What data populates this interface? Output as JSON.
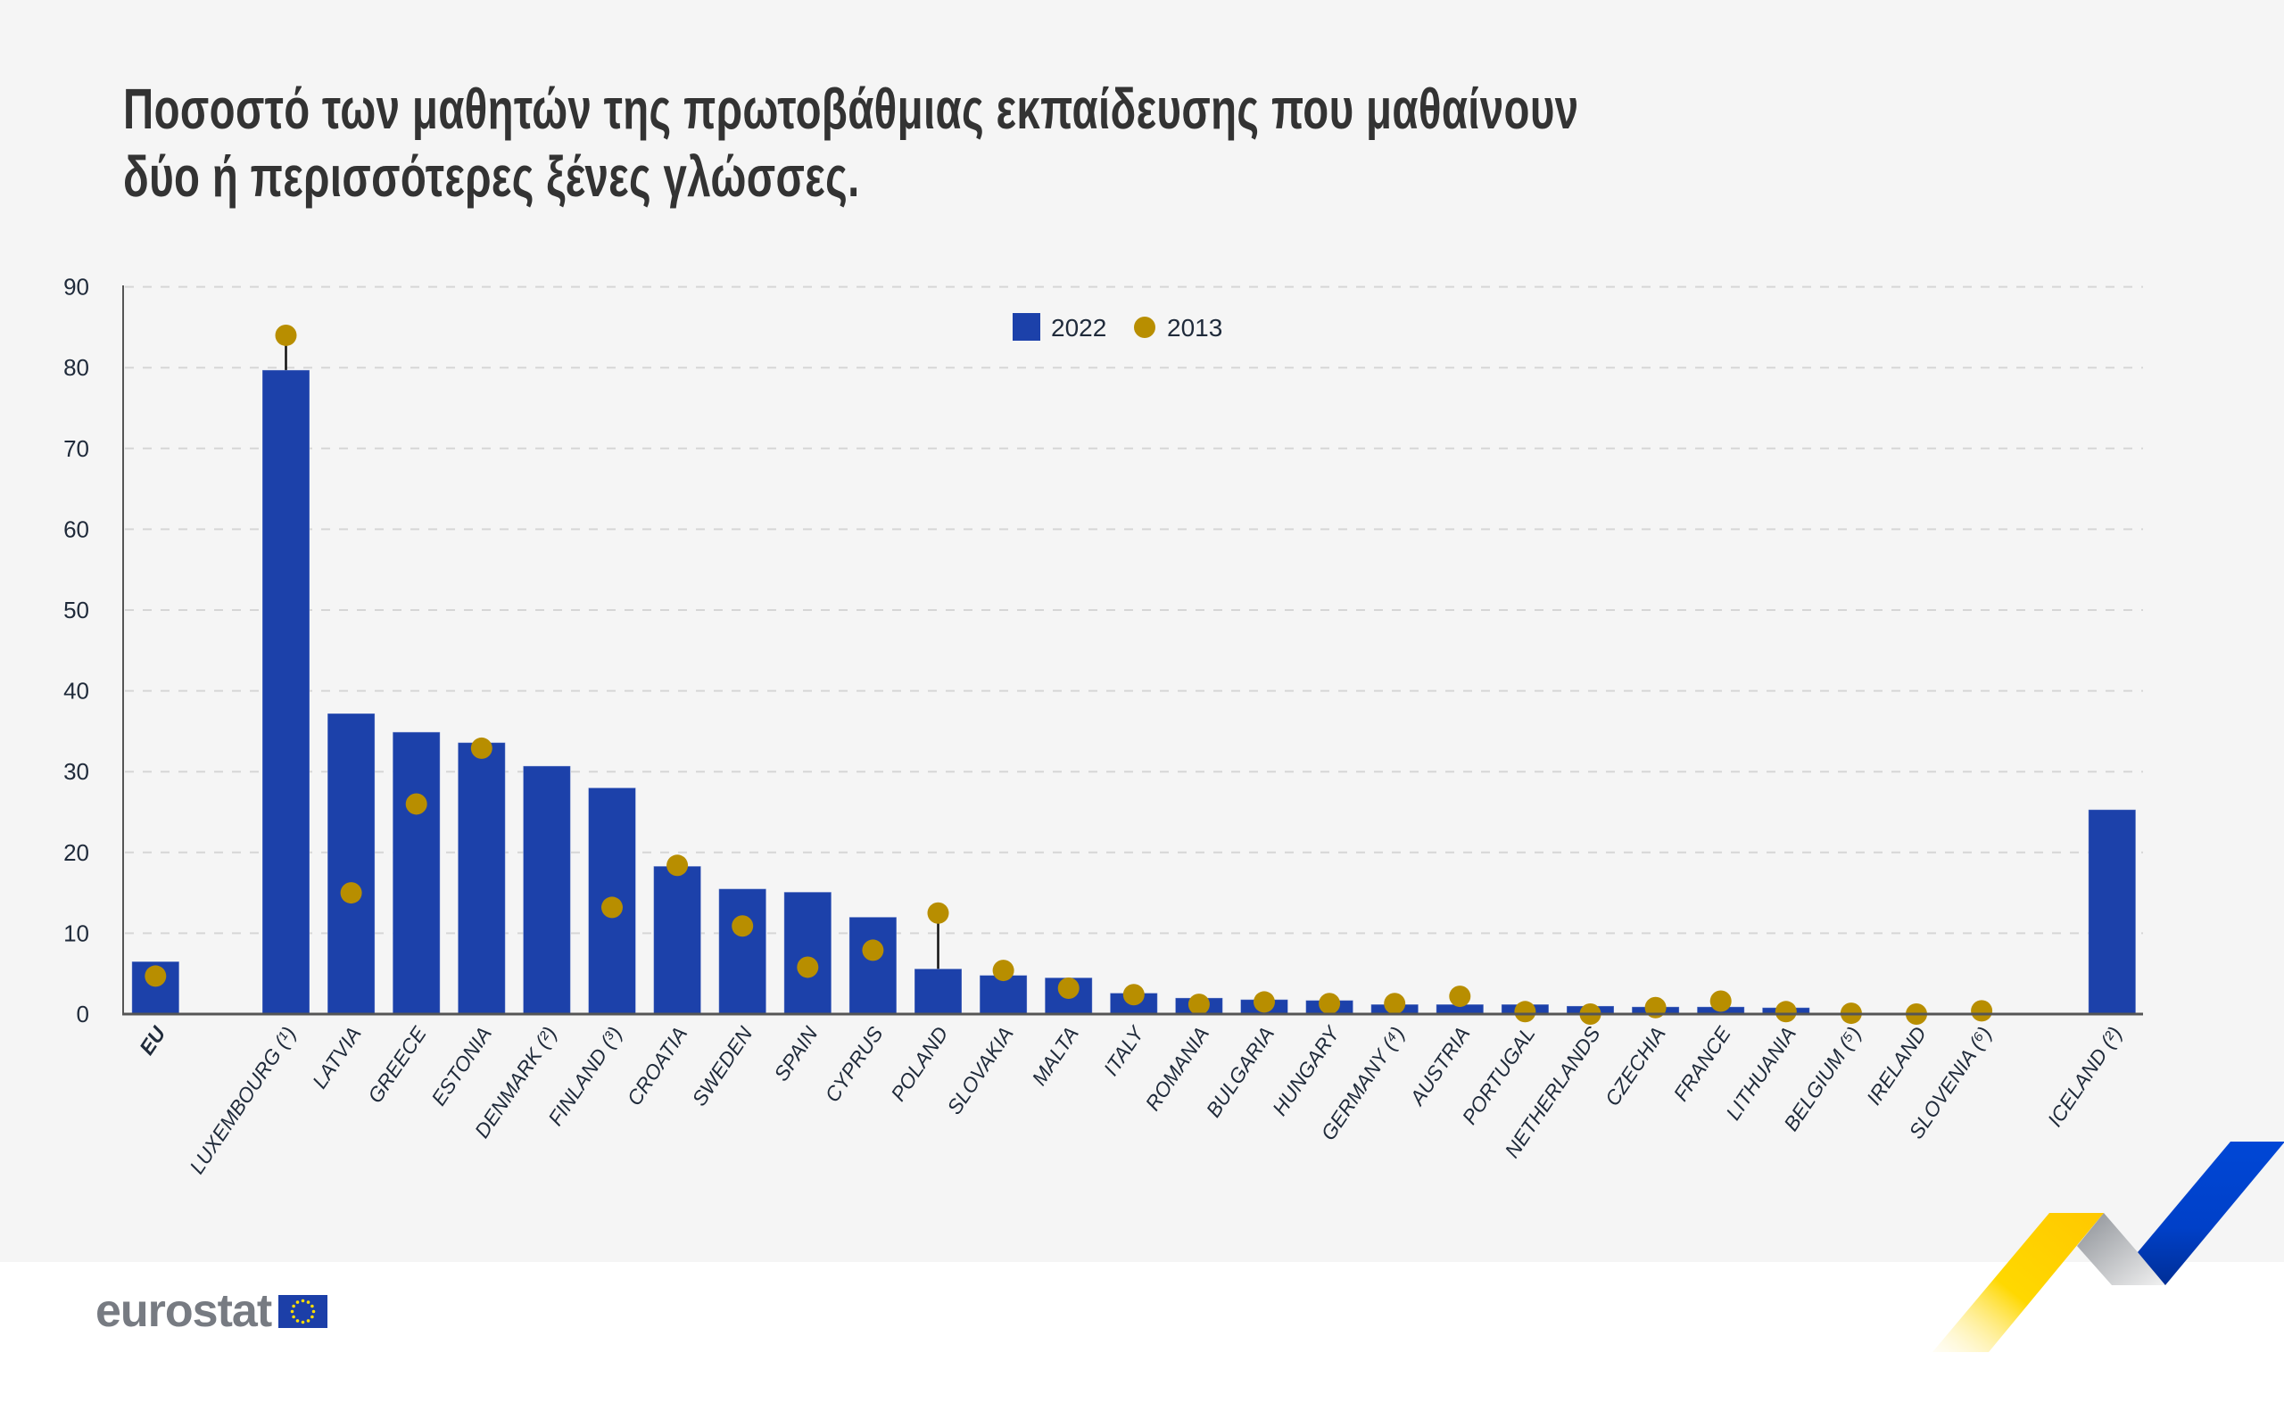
{
  "title": {
    "line1": "Ποσοστό των μαθητών της πρωτοβάθμιας εκπαίδευσης που μαθαίνουν",
    "line2": "δύο ή περισσότερες ξένες γλώσσες."
  },
  "colors": {
    "bar_2022": "#1c41aa",
    "dot_2013": "#b88e00",
    "background": "#f5f5f5",
    "text": "#1f2a3a"
  },
  "legend": [
    {
      "label": "2022",
      "marker": "square",
      "color": "#1c41aa"
    },
    {
      "label": "2013",
      "marker": "circle",
      "color": "#b88e00"
    }
  ],
  "footer": {
    "logo_text": "eurostat",
    "flag_icon": "eu-flag-icon"
  },
  "chart_data": {
    "type": "bar",
    "title": "Ποσοστό των μαθητών της πρωτοβάθμιας εκπαίδευσης που μαθαίνουν δύο ή περισσότερες ξένες γλώσσες.",
    "xlabel": "",
    "ylabel": "",
    "ylim": [
      0,
      90
    ],
    "yticks": [
      0,
      10,
      20,
      30,
      40,
      50,
      60,
      70,
      80,
      90
    ],
    "grid": true,
    "legend_position": "top-center",
    "categories": [
      "EU",
      "LUXEMBOURG (¹)",
      "LATVIA",
      "GREECE",
      "ESTONIA",
      "DENMARK (²)",
      "FINLAND (³)",
      "CROATIA",
      "SWEDEN",
      "SPAIN",
      "CYPRUS",
      "POLAND",
      "SLOVAKIA",
      "MALTA",
      "ITALY",
      "ROMANIA",
      "BULGARIA",
      "HUNGARY",
      "GERMANY (⁴)",
      "AUSTRIA",
      "PORTUGAL",
      "NETHERLANDS",
      "CZECHIA",
      "FRANCE",
      "LITHUANIA",
      "BELGIUM (⁵)",
      "IRELAND",
      "SLOVENIA (⁶)",
      "ICELAND (²)"
    ],
    "slots": [
      -2,
      0,
      1,
      2,
      3,
      4,
      5,
      6,
      7,
      8,
      9,
      10,
      11,
      12,
      13,
      14,
      15,
      16,
      17,
      18,
      19,
      20,
      21,
      22,
      23,
      24,
      25,
      26,
      28
    ],
    "series": [
      {
        "name": "2022",
        "type": "bar",
        "values": [
          6.5,
          79.7,
          37.2,
          34.9,
          33.6,
          30.7,
          28.0,
          18.3,
          15.5,
          15.1,
          12.0,
          5.6,
          4.8,
          4.5,
          2.6,
          2.0,
          1.8,
          1.7,
          1.2,
          1.2,
          1.2,
          1.0,
          0.9,
          0.9,
          0.8,
          0.0,
          0.0,
          0.0,
          25.3
        ]
      },
      {
        "name": "2013",
        "type": "scatter",
        "values": [
          4.7,
          84.0,
          15.0,
          26.0,
          32.9,
          null,
          13.2,
          18.4,
          10.9,
          5.8,
          7.9,
          12.5,
          5.4,
          3.2,
          2.4,
          1.2,
          1.5,
          1.3,
          1.3,
          2.2,
          0.3,
          0.0,
          0.8,
          1.6,
          0.3,
          0.1,
          0.0,
          0.4,
          null
        ]
      }
    ]
  }
}
